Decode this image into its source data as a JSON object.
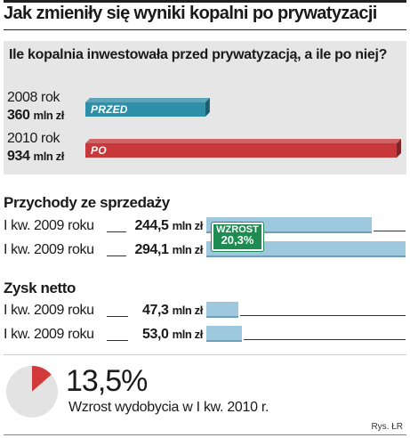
{
  "title": "Jak zmieniły się wyniki kopalni po prywatyzacji",
  "credit": "Rys. ŁR",
  "chart_data": [
    {
      "type": "bar",
      "title": "Ile kopalnia inwestowała przed prywatyzacją, a ile po niej?",
      "categories": [
        "2008 rok",
        "2010 rok"
      ],
      "values": [
        360,
        934
      ],
      "value_labels": [
        "360",
        "934"
      ],
      "unit": "mln zł",
      "bar_tags": [
        "PRZED",
        "PO"
      ],
      "colors": [
        "#2e8fa8",
        "#c8373a"
      ]
    },
    {
      "type": "bar",
      "title": "Przychody ze sprzedaży",
      "categories": [
        "I kw. 2009 roku",
        "I kw. 2009 roku"
      ],
      "values": [
        244.5,
        294.1
      ],
      "value_labels": [
        "244,5",
        "294,1"
      ],
      "unit": "mln zł",
      "badge": {
        "line1": "WZROST",
        "line2": "20,3%"
      },
      "color": "#9ec8dd"
    },
    {
      "type": "bar",
      "title": "Zysk netto",
      "categories": [
        "I kw. 2009 roku",
        "I kw. 2009 roku"
      ],
      "values": [
        47.3,
        53.0
      ],
      "value_labels": [
        "47,3",
        "53,0"
      ],
      "unit": "mln zł",
      "color": "#9ec8dd"
    },
    {
      "type": "pie",
      "values": [
        13.5,
        86.5
      ],
      "value_label": "13,5%",
      "caption": "Wzrost wydobycia w I kw. 2010 r.",
      "colors": [
        "#d2393a",
        "#e3e3e3"
      ]
    }
  ]
}
